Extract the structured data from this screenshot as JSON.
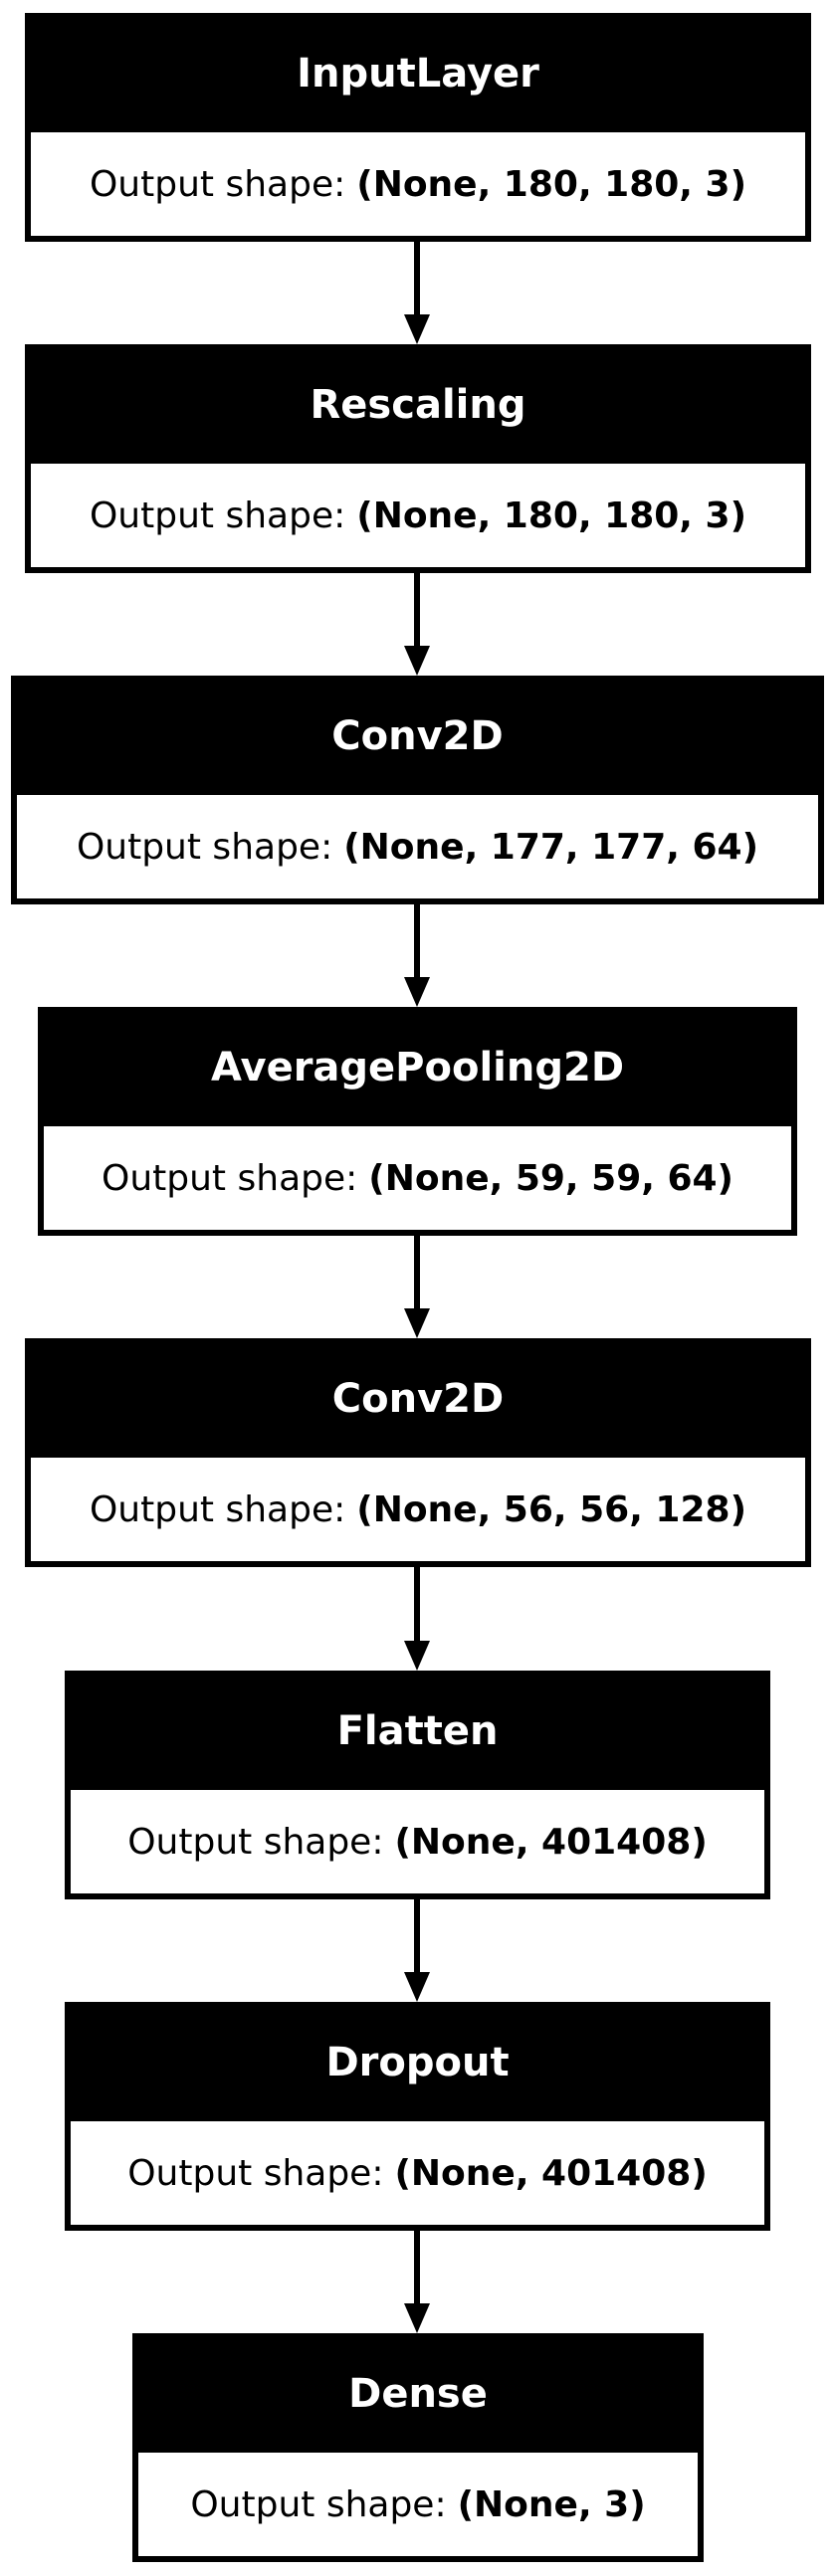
{
  "diagram": {
    "output_label": "Output shape:",
    "nodes": [
      {
        "name": "InputLayer",
        "shape": "(None, 180, 180, 3)"
      },
      {
        "name": "Rescaling",
        "shape": "(None, 180, 180, 3)"
      },
      {
        "name": "Conv2D",
        "shape": "(None, 177, 177, 64)"
      },
      {
        "name": "AveragePooling2D",
        "shape": "(None, 59, 59, 64)"
      },
      {
        "name": "Conv2D",
        "shape": "(None, 56, 56, 128)"
      },
      {
        "name": "Flatten",
        "shape": "(None, 401408)"
      },
      {
        "name": "Dropout",
        "shape": "(None, 401408)"
      },
      {
        "name": "Dense",
        "shape": "(None, 3)"
      }
    ],
    "edges": [
      {
        "from": 0,
        "to": 1
      },
      {
        "from": 1,
        "to": 2
      },
      {
        "from": 2,
        "to": 3
      },
      {
        "from": 3,
        "to": 4
      },
      {
        "from": 4,
        "to": 5
      },
      {
        "from": 5,
        "to": 6
      },
      {
        "from": 6,
        "to": 7
      }
    ]
  }
}
